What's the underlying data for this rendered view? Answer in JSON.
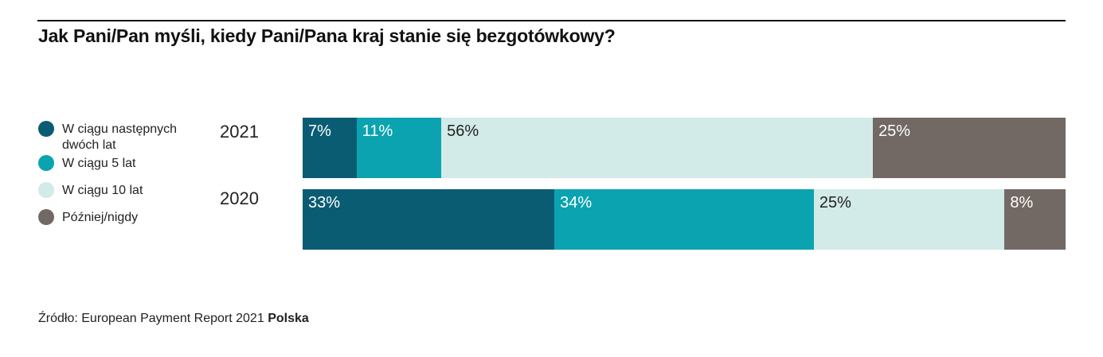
{
  "title": "Jak Pani/Pan myśli, kiedy Pani/Pana kraj stanie się bezgotówkowy?",
  "source": {
    "prefix": "Źródło: European Payment Report 2021",
    "bold": "Polska"
  },
  "colors": {
    "series": [
      "#0a5c73",
      "#0ba3b0",
      "#d2eae8",
      "#726864"
    ],
    "label_text": [
      "#ffffff",
      "#ffffff",
      "#222222",
      "#ffffff"
    ]
  },
  "chart_data": {
    "type": "bar",
    "orientation": "horizontal-stacked-100",
    "categories": [
      "2021",
      "2020"
    ],
    "series": [
      {
        "name": "W ciągu następnych dwóch lat",
        "values": [
          7,
          33
        ],
        "labels": [
          "7%",
          "33%"
        ]
      },
      {
        "name": "W ciągu 5 lat",
        "values": [
          11,
          34
        ],
        "labels": [
          "11%",
          "34%"
        ]
      },
      {
        "name": "W ciągu 10 lat",
        "values": [
          56,
          25
        ],
        "labels": [
          "56%",
          "25%"
        ]
      },
      {
        "name": "Później/nigdy",
        "values": [
          25,
          8
        ],
        "labels": [
          "25%",
          "8%"
        ]
      }
    ],
    "legend_position": "left",
    "grid": false
  }
}
